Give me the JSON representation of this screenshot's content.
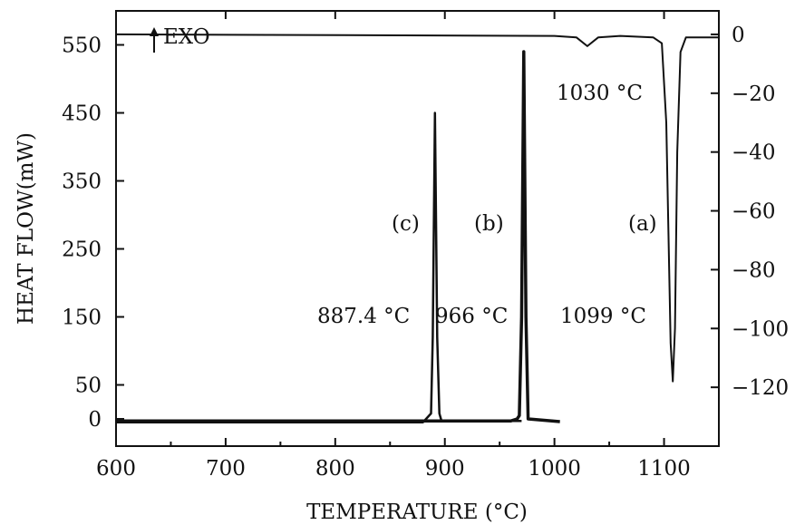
{
  "chart_data": {
    "type": "line",
    "xlabel": "TEMPERATURE (°C)",
    "ylabel": "HEAT FLOW(mW)",
    "xlim": [
      600,
      1150
    ],
    "ylim_left": [
      -40,
      600
    ],
    "ylim_right": [
      -140,
      8
    ],
    "xticks": [
      600,
      700,
      800,
      900,
      1000,
      1100
    ],
    "yticks_left": [
      0,
      50,
      150,
      250,
      350,
      450,
      550
    ],
    "yticks_right": [
      0,
      -20,
      -40,
      -60,
      -80,
      -100,
      -120
    ],
    "xtick_labels": [
      "600",
      "700",
      "800",
      "900",
      "1000",
      "1100"
    ],
    "ytick_labels_left": [
      "0",
      "50",
      "150",
      "250",
      "350",
      "450",
      "550"
    ],
    "ytick_labels_right": [
      "0",
      "−20",
      "−40",
      "−60",
      "−80",
      "−100",
      "−120"
    ],
    "indicator": "EXO",
    "series": [
      {
        "name": "(a)",
        "axis": "right",
        "x": [
          600,
          1000,
          1020,
          1030,
          1040,
          1060,
          1090,
          1098,
          1102,
          1106,
          1108,
          1110,
          1112,
          1115,
          1120,
          1150
        ],
        "y": [
          0,
          -0.5,
          -1,
          -4,
          -1,
          -0.5,
          -1,
          -3,
          -30,
          -105,
          -118,
          -100,
          -40,
          -6,
          -1,
          -1
        ]
      },
      {
        "name": "(b)",
        "axis": "left",
        "x": [
          600,
          960,
          966,
          968,
          970,
          972,
          974,
          976,
          1005
        ],
        "y": [
          -3,
          -3,
          0,
          5,
          150,
          540,
          150,
          0,
          -4
        ]
      },
      {
        "name": "(c)",
        "axis": "left",
        "x": [
          600,
          880,
          887.4,
          889,
          891,
          893,
          895,
          897,
          970
        ],
        "y": [
          -5,
          -5,
          8,
          120,
          450,
          120,
          8,
          -3,
          -3
        ]
      }
    ],
    "annotations": [
      {
        "text": "1030 °C"
      },
      {
        "text": "887.4 °C"
      },
      {
        "text": "966 °C"
      },
      {
        "text": "1099 °C"
      },
      {
        "text": "(a)"
      },
      {
        "text": "(b)"
      },
      {
        "text": "(c)"
      }
    ]
  }
}
